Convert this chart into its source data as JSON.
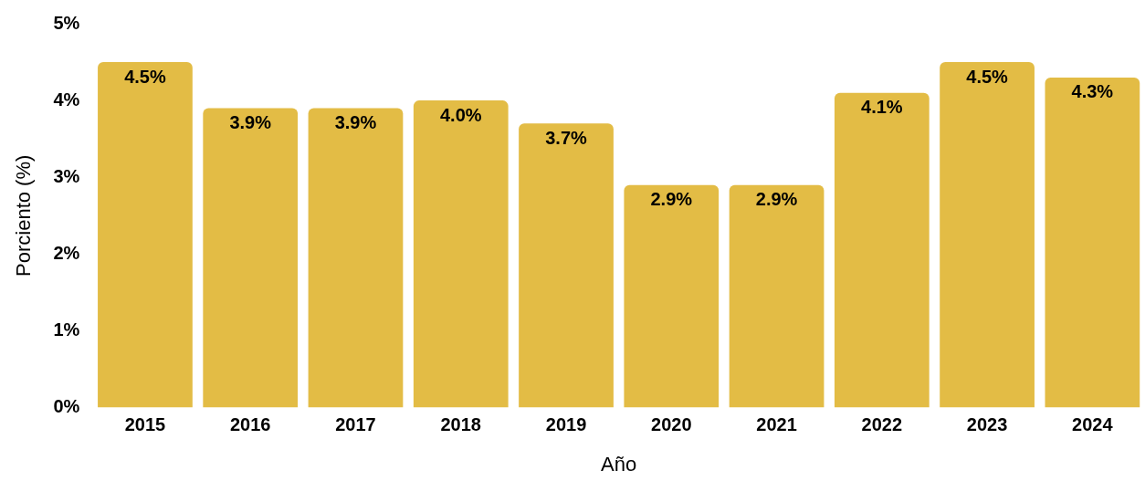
{
  "chart_data": {
    "type": "bar",
    "xlabel": "Año",
    "ylabel": "Porciento (%)",
    "categories": [
      "2015",
      "2016",
      "2017",
      "2018",
      "2019",
      "2020",
      "2021",
      "2022",
      "2023",
      "2024"
    ],
    "values": [
      4.5,
      3.9,
      3.9,
      4.0,
      3.7,
      2.9,
      2.9,
      4.1,
      4.5,
      4.3
    ],
    "value_labels": [
      "4.5%",
      "3.9%",
      "3.9%",
      "4.0%",
      "3.7%",
      "2.9%",
      "2.9%",
      "4.1%",
      "4.5%",
      "4.3%"
    ],
    "color": "#e3bc45",
    "ylim": [
      0,
      5
    ],
    "yticks": [
      {
        "value": 0,
        "label": "0%"
      },
      {
        "value": 1,
        "label": "1%"
      },
      {
        "value": 2,
        "label": "2%"
      },
      {
        "value": 3,
        "label": "3%"
      },
      {
        "value": 4,
        "label": "4%"
      },
      {
        "value": 5,
        "label": "5%"
      }
    ],
    "grid": false,
    "legend": false
  }
}
